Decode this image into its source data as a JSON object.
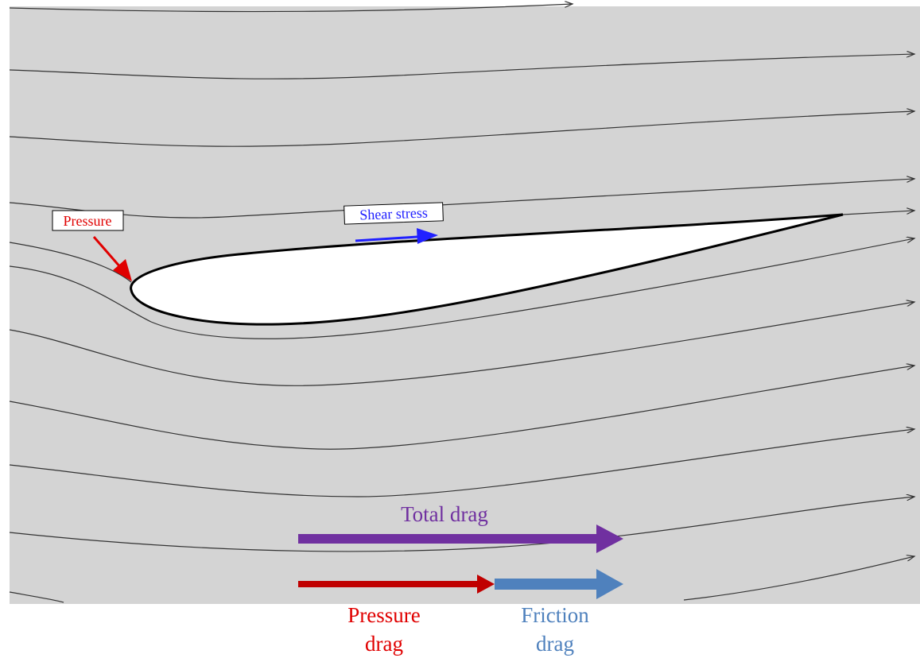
{
  "annotations": {
    "pressure": "Pressure",
    "shear_stress": "Shear stress",
    "total_drag": "Total drag",
    "pressure_drag": [
      "Pressure",
      "drag"
    ],
    "friction_drag": [
      "Friction",
      "drag"
    ]
  }
}
